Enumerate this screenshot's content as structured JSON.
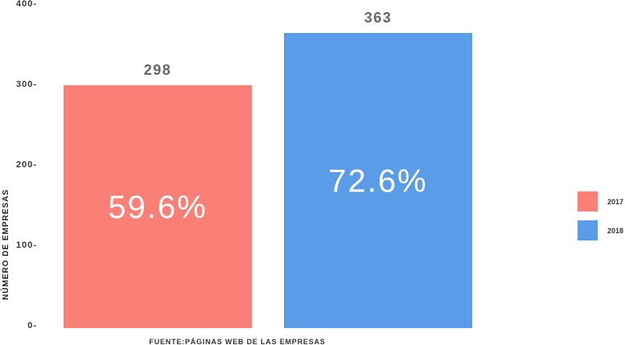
{
  "chart_data": {
    "type": "bar",
    "categories": [
      "2017",
      "2018"
    ],
    "values": [
      298,
      363
    ],
    "value_labels": [
      "298",
      "363"
    ],
    "percent_labels": [
      "59.6%",
      "72.6%"
    ],
    "colors": [
      "#fa8077",
      "#5b9ce9"
    ],
    "ylabel": "NÚMERO DE EMPRESAS",
    "xlabel": "FUENTE:PÁGINAS WEB DE LAS EMPRESAS",
    "ylim": [
      0,
      400
    ],
    "yticks": [
      0,
      100,
      200,
      300,
      400
    ],
    "ytick_labels": [
      "0-",
      "100-",
      "200-",
      "300-",
      "400-"
    ],
    "grid": false,
    "legend_position": "right",
    "legend": [
      "2017",
      "2018"
    ]
  }
}
